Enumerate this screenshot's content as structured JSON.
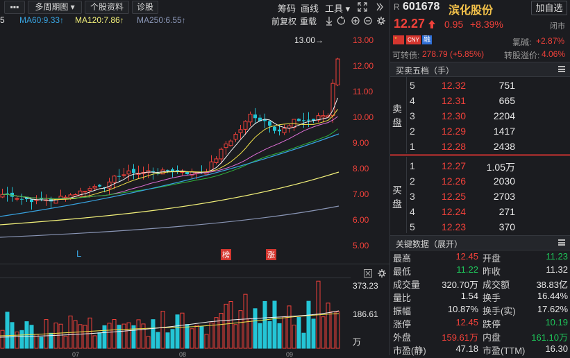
{
  "toolbar": {
    "menu_label": "▪▪▪",
    "period_label": "多周期图 ▾",
    "stock_info_label": "个股资料",
    "diagnose_label": "诊股",
    "chip_label": "筹码",
    "draw_label": "画线",
    "tools_label": "工具 ▾"
  },
  "ma_indicators": {
    "prefix": "5",
    "ma60": "MA60:9.33↑",
    "ma120": "MA120:7.86↑",
    "ma250": "MA250:6.55↑",
    "colors": {
      "ma60": "#38a3e0",
      "ma120": "#f2f07a",
      "ma250": "#8a96b6"
    }
  },
  "chart_controls": {
    "adjust_label": "前复权",
    "overlay_label": "重载"
  },
  "price_axis": [
    "13.00",
    "12.00",
    "11.00",
    "10.00",
    "9.00",
    "8.00",
    "7.00",
    "6.00",
    "5.00"
  ],
  "volume_axis": [
    "373.23",
    "186.61",
    "万"
  ],
  "high_marker": "13.00→",
  "chart_markers": {
    "l_marker": "L",
    "rank_marker": "榜",
    "limit_up_marker": "涨"
  },
  "month_labels": [
    "07",
    "08",
    "09"
  ],
  "quote": {
    "market_prefix": "R",
    "code": "601678",
    "name": "滨化股份",
    "add_watch_label": "加自选",
    "price": "12.27",
    "change": "0.95",
    "change_pct": "+8.39%",
    "status": "闭市",
    "sector_badge": "CNY",
    "margin_badge": "融",
    "sector_name": "氯碱:",
    "sector_pct": "+2.87%",
    "convertible_label": "可转债:",
    "convertible_value": "278.79 (+5.85%)",
    "premium_label": "转股溢价:",
    "premium_value": "4.06%"
  },
  "order_book": {
    "title": "买卖五档（手）",
    "sell_label": [
      "卖",
      "盘"
    ],
    "buy_label": [
      "买",
      "盘"
    ],
    "sell": [
      {
        "level": "5",
        "price": "12.32",
        "volume": "751"
      },
      {
        "level": "4",
        "price": "12.31",
        "volume": "665"
      },
      {
        "level": "3",
        "price": "12.30",
        "volume": "2204"
      },
      {
        "level": "2",
        "price": "12.29",
        "volume": "1417"
      },
      {
        "level": "1",
        "price": "12.28",
        "volume": "2438"
      }
    ],
    "buy": [
      {
        "level": "1",
        "price": "12.27",
        "volume": "1.05万"
      },
      {
        "level": "2",
        "price": "12.26",
        "volume": "2030"
      },
      {
        "level": "3",
        "price": "12.25",
        "volume": "2703"
      },
      {
        "level": "4",
        "price": "12.24",
        "volume": "271"
      },
      {
        "level": "5",
        "price": "12.23",
        "volume": "370"
      }
    ]
  },
  "key_data": {
    "title": "关键数据（展开）",
    "rows": [
      {
        "l1": "最高",
        "v1": "12.45",
        "c1": "red",
        "l2": "开盘",
        "v2": "11.23",
        "c2": "green"
      },
      {
        "l1": "最低",
        "v1": "11.22",
        "c1": "green",
        "l2": "昨收",
        "v2": "11.32",
        "c2": "white"
      },
      {
        "l1": "成交量",
        "v1": "320.70万",
        "c1": "white",
        "l2": "成交额",
        "v2": "38.83亿",
        "c2": "white"
      },
      {
        "l1": "量比",
        "v1": "1.54",
        "c1": "white",
        "l2": "换手",
        "v2": "16.44%",
        "c2": "white"
      },
      {
        "l1": "振幅",
        "v1": "10.87%",
        "c1": "white",
        "l2": "换手(实)",
        "v2": "17.62%",
        "c2": "white"
      },
      {
        "l1": "涨停",
        "v1": "12.45",
        "c1": "red",
        "l2": "跌停",
        "v2": "10.19",
        "c2": "green"
      },
      {
        "l1": "外盘",
        "v1": "159.61万",
        "c1": "red",
        "l2": "内盘",
        "v2": "161.10万",
        "c2": "green"
      },
      {
        "l1": "市盈(静)",
        "v1": "47.18",
        "c1": "white",
        "l2": "市盈(TTM)",
        "v2": "16.30",
        "c2": "white"
      }
    ]
  }
}
